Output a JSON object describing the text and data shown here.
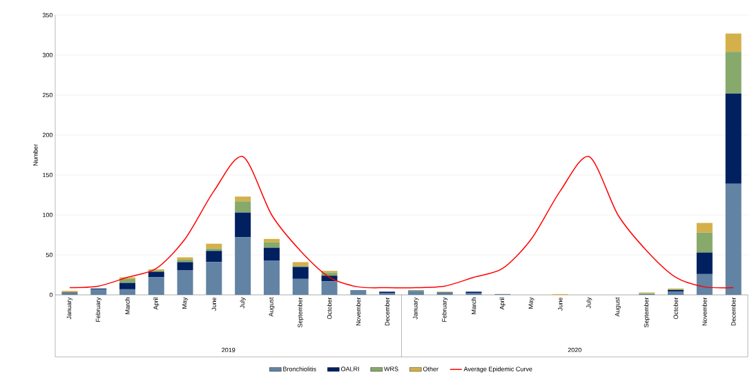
{
  "chart_data": {
    "type": "bar",
    "stacked": true,
    "ylabel": "Number",
    "categories": [
      "January",
      "February",
      "March",
      "April",
      "May",
      "June",
      "July",
      "August",
      "September",
      "October",
      "November",
      "December",
      "January",
      "February",
      "March",
      "April",
      "May",
      "June",
      "July",
      "August",
      "September",
      "October",
      "November",
      "December"
    ],
    "annotations": [
      "2019",
      "2020"
    ],
    "series": [
      {
        "name": "Bronchiolitis",
        "color": "#6283a3",
        "values": [
          2,
          7,
          7,
          22,
          31,
          41,
          72,
          43,
          20,
          17,
          6,
          2,
          5,
          2,
          2,
          1,
          0,
          0,
          0,
          0,
          1,
          4,
          26,
          139
        ]
      },
      {
        "name": "OALRI",
        "color": "#002060",
        "values": [
          1,
          1,
          8,
          7,
          10,
          14,
          31,
          16,
          15,
          7,
          0,
          2,
          0,
          1,
          2,
          0,
          0,
          0,
          0,
          0,
          0,
          2,
          27,
          113
        ]
      },
      {
        "name": "WRS",
        "color": "#87a96b",
        "values": [
          0,
          0,
          5,
          1,
          3,
          3,
          14,
          7,
          1,
          4,
          0,
          0,
          1,
          0,
          0,
          0,
          0,
          0,
          0,
          0,
          1,
          1,
          25,
          52
        ]
      },
      {
        "name": "Other",
        "color": "#d4b04a",
        "values": [
          2,
          0,
          2,
          2,
          3,
          6,
          6,
          4,
          5,
          2,
          0,
          0,
          0,
          1,
          0,
          0,
          0,
          1,
          0,
          0,
          1,
          1,
          12,
          23
        ]
      },
      {
        "name": "Average Epidemic Curve",
        "type": "line",
        "color": "#ff0000",
        "values": [
          9,
          11,
          22,
          33,
          70,
          130,
          173,
          100,
          55,
          22,
          10,
          9,
          9,
          11,
          22,
          33,
          70,
          130,
          173,
          100,
          55,
          22,
          10,
          9
        ]
      }
    ],
    "ylim": [
      0,
      350
    ],
    "yticks": [
      0,
      50,
      100,
      150,
      200,
      250,
      300,
      350
    ],
    "grid": "y",
    "legend": "bottom"
  }
}
